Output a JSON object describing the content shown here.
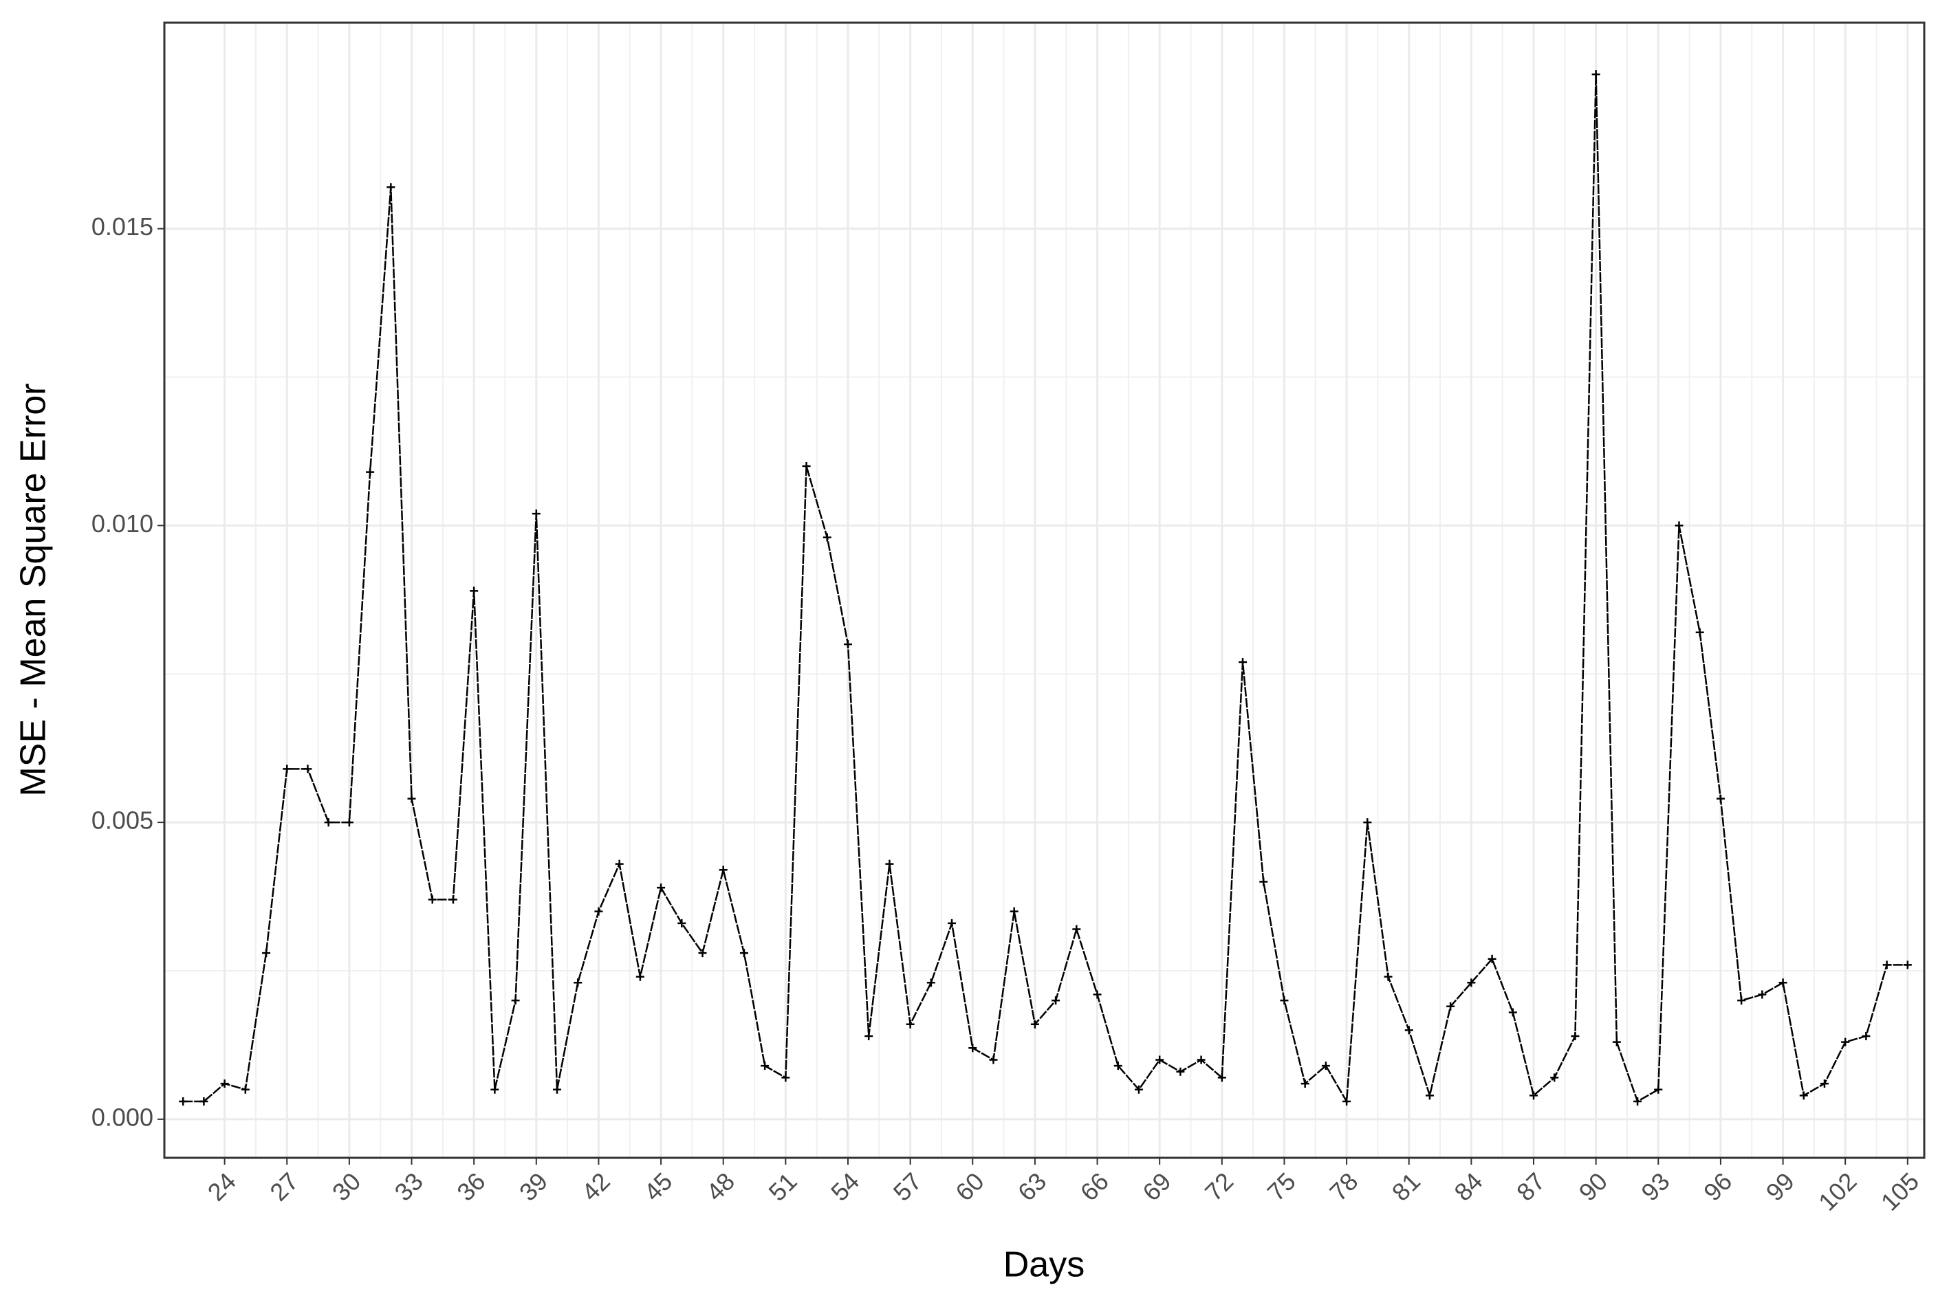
{
  "chart_data": {
    "type": "line",
    "x_label": "Days",
    "y_label": "MSE - Mean Square Error",
    "color": "#000000",
    "grid": true,
    "x": [
      22,
      23,
      24,
      25,
      26,
      27,
      28,
      29,
      30,
      31,
      32,
      33,
      34,
      35,
      36,
      37,
      38,
      39,
      40,
      41,
      42,
      43,
      44,
      45,
      46,
      47,
      48,
      49,
      50,
      51,
      52,
      53,
      54,
      55,
      56,
      57,
      58,
      59,
      60,
      61,
      62,
      63,
      64,
      65,
      66,
      67,
      68,
      69,
      70,
      71,
      72,
      73,
      74,
      75,
      76,
      77,
      78,
      79,
      80,
      81,
      82,
      83,
      84,
      85,
      86,
      87,
      88,
      89,
      90,
      91,
      92,
      93,
      94,
      95,
      96,
      97,
      98,
      99,
      100,
      101,
      102,
      103,
      104,
      105
    ],
    "values": [
      0.0003,
      0.0003,
      0.0006,
      0.0005,
      0.0028,
      0.0059,
      0.0059,
      0.005,
      0.005,
      0.0109,
      0.0157,
      0.0054,
      0.0037,
      0.0037,
      0.0089,
      0.0005,
      0.002,
      0.0102,
      0.0005,
      0.0023,
      0.0035,
      0.0043,
      0.0024,
      0.0039,
      0.0033,
      0.0028,
      0.0042,
      0.0028,
      0.0009,
      0.0007,
      0.011,
      0.0098,
      0.008,
      0.0014,
      0.0043,
      0.0016,
      0.0023,
      0.0033,
      0.0012,
      0.001,
      0.0035,
      0.0016,
      0.002,
      0.0032,
      0.0021,
      0.0009,
      0.0005,
      0.001,
      0.0008,
      0.001,
      0.0007,
      0.0077,
      0.004,
      0.002,
      0.0006,
      0.0009,
      0.0003,
      0.005,
      0.0024,
      0.0015,
      0.0004,
      0.0019,
      0.0023,
      0.0027,
      0.0018,
      0.0004,
      0.0007,
      0.0014,
      0.0176,
      0.0013,
      0.0003,
      0.0005,
      0.01,
      0.0082,
      0.0054,
      0.002,
      0.0021,
      0.0023,
      0.0004,
      0.0006,
      0.0013,
      0.0014,
      0.0026,
      0.0026
    ],
    "xlim": [
      21.1,
      105.8
    ],
    "xticks": [
      24,
      27,
      30,
      33,
      36,
      39,
      42,
      45,
      48,
      51,
      54,
      57,
      60,
      63,
      66,
      69,
      72,
      75,
      78,
      81,
      84,
      87,
      90,
      93,
      96,
      99,
      102,
      105
    ],
    "ylim": [
      -0.00065,
      0.01847
    ],
    "yticks": [
      {
        "value": 0,
        "label": "0.000"
      },
      {
        "value": 0.005,
        "label": "0.005"
      },
      {
        "value": 0.01,
        "label": "0.010"
      },
      {
        "value": 0.015,
        "label": "0.015"
      }
    ]
  }
}
